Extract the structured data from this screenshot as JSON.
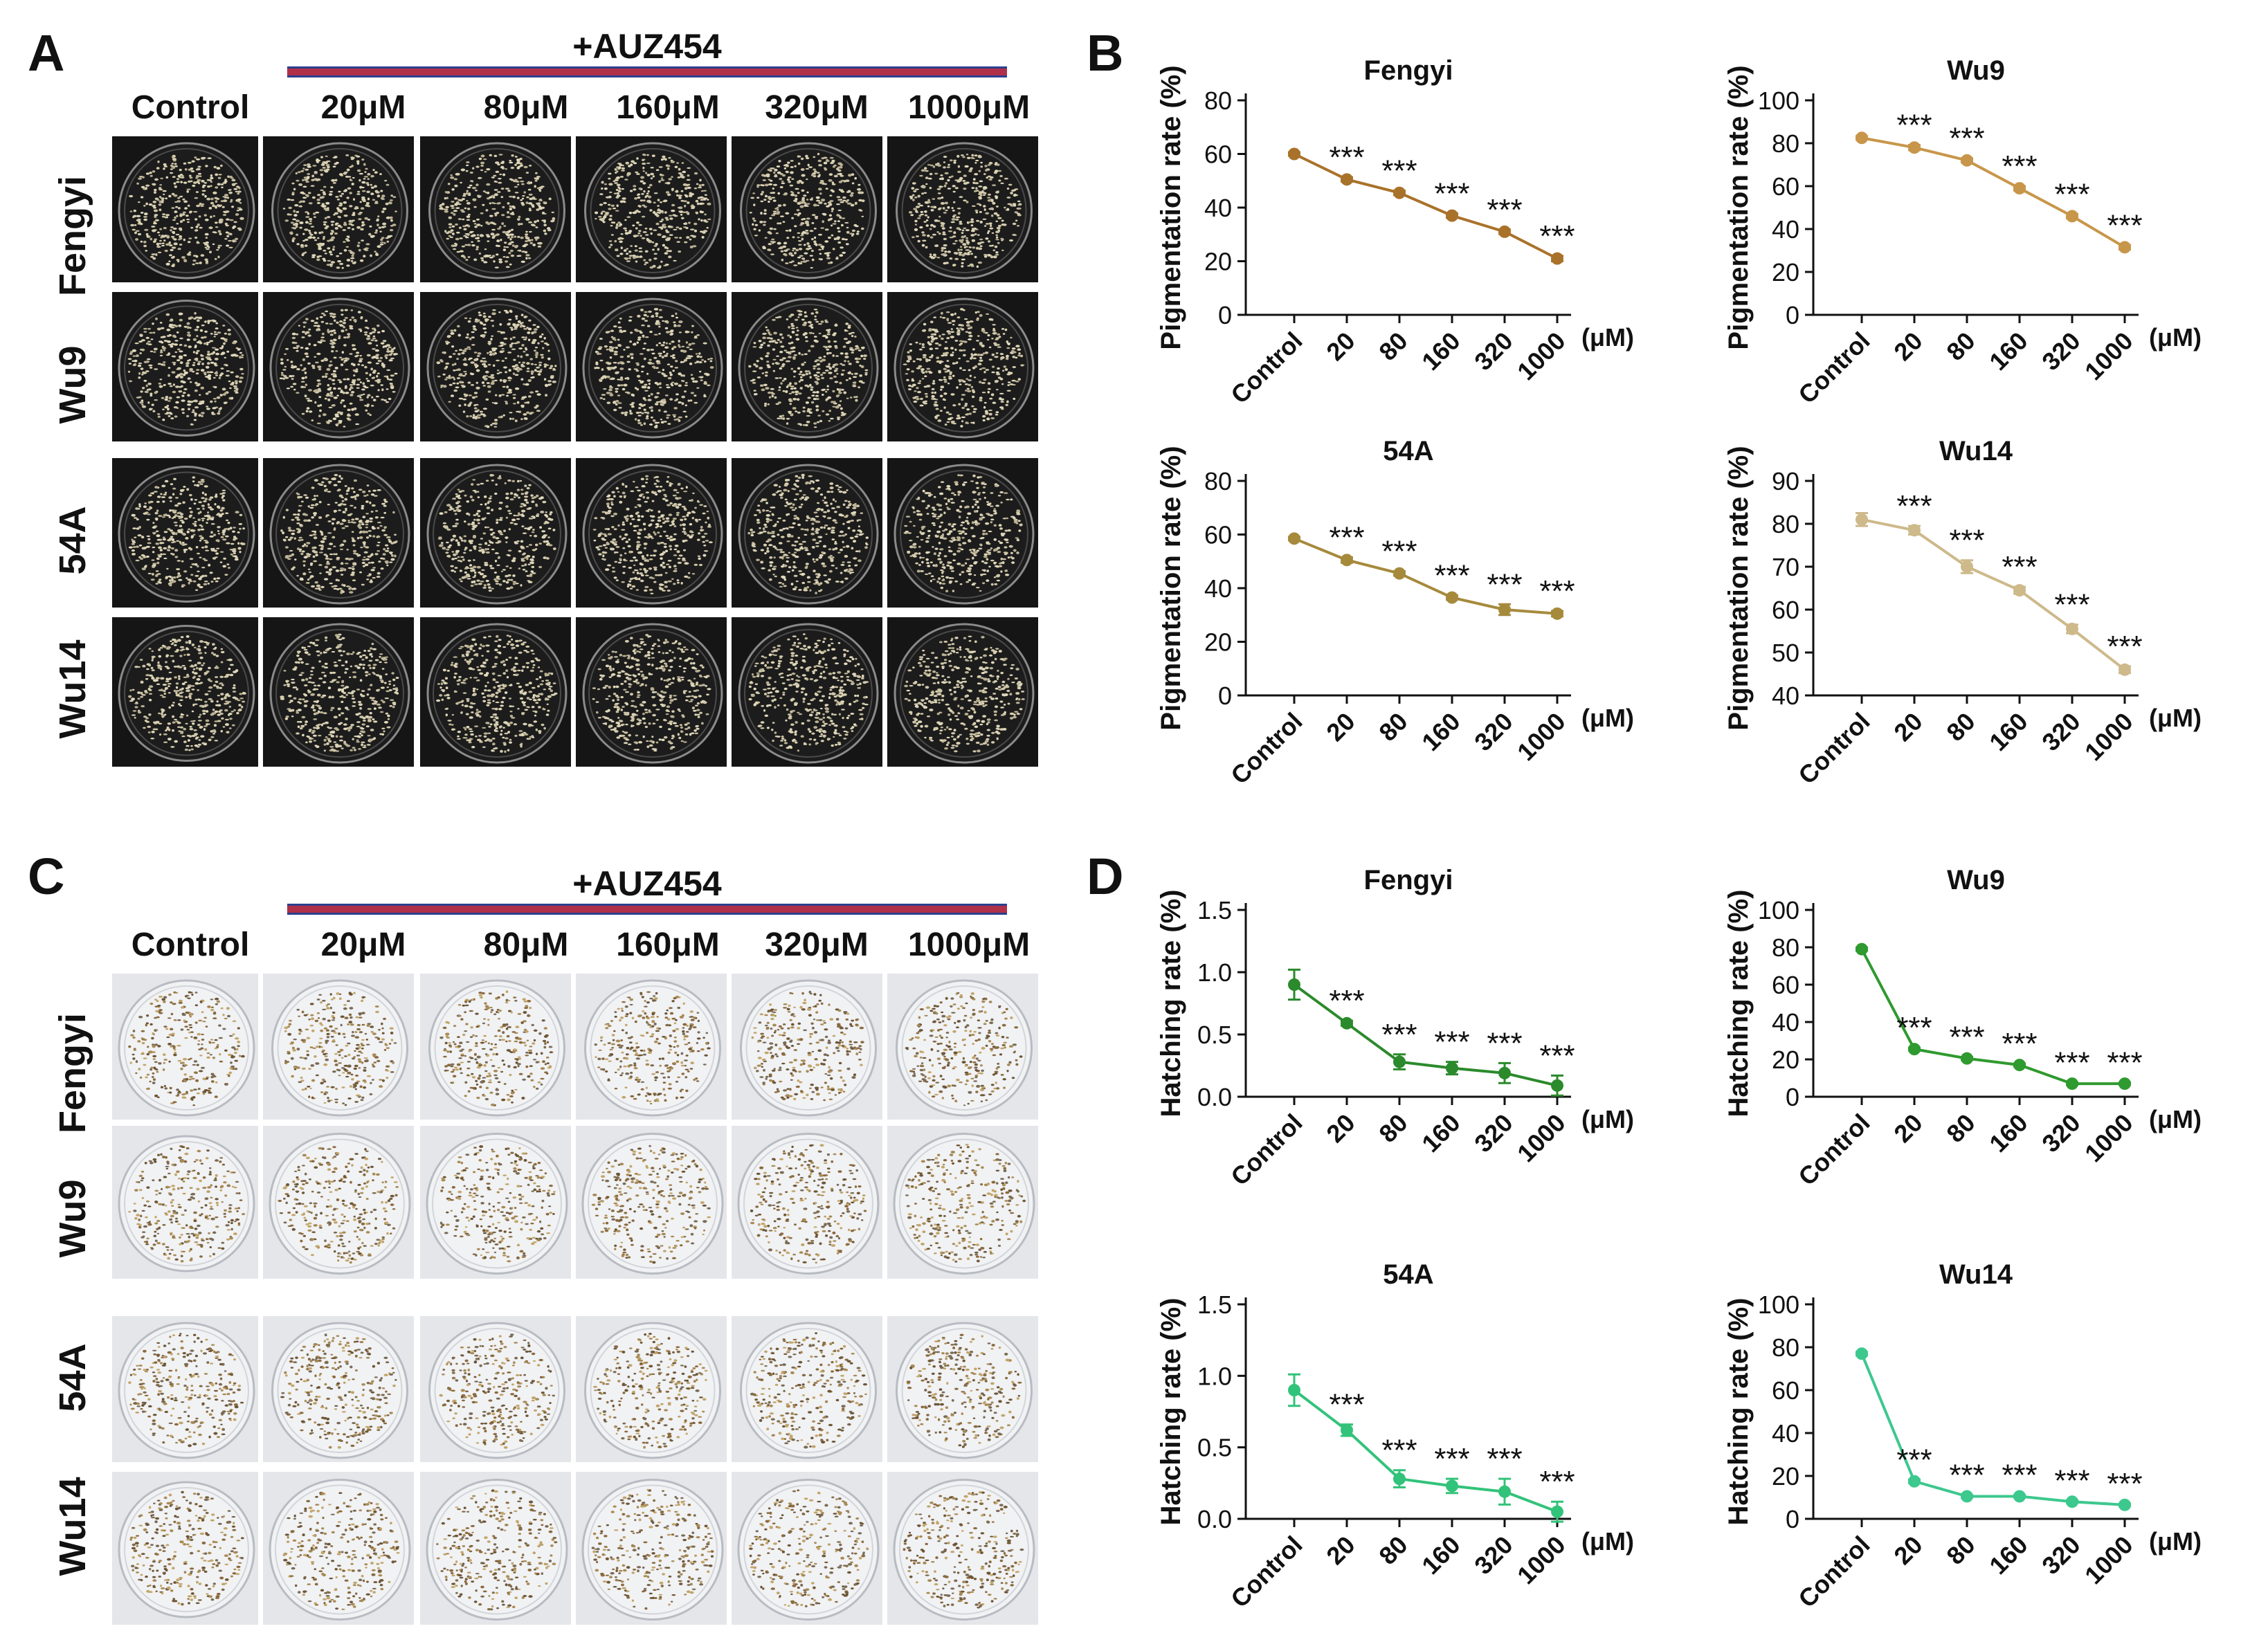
{
  "panels": {
    "A": {
      "letter": "A",
      "treatment_label": "+AUZ454",
      "columns": [
        "Control",
        "20μM",
        "80μM",
        "160μM",
        "320μM",
        "1000μM"
      ],
      "rows": [
        "Fengyi",
        "Wu9",
        "54A",
        "Wu14"
      ]
    },
    "B": {
      "letter": "B"
    },
    "C": {
      "letter": "C",
      "treatment_label": "+AUZ454",
      "columns": [
        "Control",
        "20μM",
        "80μM",
        "160μM",
        "320μM",
        "1000μM"
      ],
      "rows": [
        "Fengyi",
        "Wu9",
        "54A",
        "Wu14"
      ]
    },
    "D": {
      "letter": "D"
    }
  },
  "colors": {
    "fengyi_pig": "#a9722a",
    "wu9_pig": "#c8964a",
    "a54_pig": "#a68a3c",
    "wu14_pig": "#cdb98a",
    "fengyi_hat": "#2b8a2b",
    "wu9_hat": "#2f9a2f",
    "a54_hat": "#32c37a",
    "wu14_hat": "#3dc88e"
  },
  "chart_data": [
    {
      "id": "B1",
      "type": "line",
      "title": "Fengyi",
      "ylabel": "Pigmentation rate (%)",
      "categories": [
        "Control",
        "20",
        "80",
        "160",
        "320",
        "1000"
      ],
      "unit_label": "(μM)",
      "ylim": [
        0,
        80
      ],
      "yticks": [
        "0",
        "20",
        "40",
        "60",
        "80"
      ],
      "values": [
        60,
        50.5,
        45.5,
        37,
        31,
        21
      ],
      "errors": [
        0.6,
        0.8,
        0.8,
        0.8,
        0.8,
        1
      ],
      "significance": [
        "",
        "***",
        "***",
        "***",
        "***",
        "***"
      ],
      "color": "#a9722a"
    },
    {
      "id": "B2",
      "type": "line",
      "title": "Wu9",
      "ylabel": "Pigmentation rate (%)",
      "categories": [
        "Control",
        "20",
        "80",
        "160",
        "320",
        "1000"
      ],
      "unit_label": "(μM)",
      "ylim": [
        0,
        100
      ],
      "yticks": [
        "0",
        "20",
        "40",
        "60",
        "80",
        "100"
      ],
      "values": [
        82.5,
        78,
        72,
        59,
        46,
        31.5
      ],
      "errors": [
        0.8,
        1.2,
        1,
        1,
        1,
        1
      ],
      "significance": [
        "",
        "***",
        "***",
        "***",
        "***",
        "***"
      ],
      "color": "#c8964a"
    },
    {
      "id": "B3",
      "type": "line",
      "title": "54A",
      "ylabel": "Pigmentation rate (%)",
      "categories": [
        "Control",
        "20",
        "80",
        "160",
        "320",
        "1000"
      ],
      "unit_label": "(μM)",
      "ylim": [
        0,
        80
      ],
      "yticks": [
        "0",
        "20",
        "40",
        "60",
        "80"
      ],
      "values": [
        58.5,
        50.5,
        45.5,
        36.5,
        32,
        30.5
      ],
      "errors": [
        0.6,
        1,
        0.8,
        0.8,
        2,
        1
      ],
      "significance": [
        "",
        "***",
        "***",
        "***",
        "***",
        "***"
      ],
      "color": "#a68a3c"
    },
    {
      "id": "B4",
      "type": "line",
      "title": "Wu14",
      "ylabel": "Pigmentation rate (%)",
      "categories": [
        "Control",
        "20",
        "80",
        "160",
        "320",
        "1000"
      ],
      "unit_label": "(μM)",
      "ylim": [
        40,
        90
      ],
      "yticks": [
        "40",
        "50",
        "60",
        "70",
        "80",
        "90"
      ],
      "values": [
        81,
        78.5,
        70,
        64.5,
        55.5,
        46
      ],
      "errors": [
        1.5,
        1,
        1.5,
        0.8,
        1,
        0.8
      ],
      "significance": [
        "",
        "***",
        "***",
        "***",
        "***",
        "***"
      ],
      "color": "#cdb98a"
    },
    {
      "id": "D1",
      "type": "line",
      "title": "Fengyi",
      "ylabel": "Hatching rate (%)",
      "categories": [
        "Control",
        "20",
        "80",
        "160",
        "320",
        "1000"
      ],
      "unit_label": "(μM)",
      "ylim": [
        0,
        1.5
      ],
      "yticks": [
        "0.0",
        "0.5",
        "1.0",
        "1.5"
      ],
      "values": [
        0.9,
        0.59,
        0.28,
        0.23,
        0.19,
        0.09
      ],
      "errors": [
        0.12,
        0.02,
        0.06,
        0.05,
        0.08,
        0.08
      ],
      "significance": [
        "",
        "***",
        "***",
        "***",
        "***",
        "***"
      ],
      "color": "#2b8a2b"
    },
    {
      "id": "D2",
      "type": "line",
      "title": "Wu9",
      "ylabel": "Hatching rate (%)",
      "categories": [
        "Control",
        "20",
        "80",
        "160",
        "320",
        "1000"
      ],
      "unit_label": "(μM)",
      "ylim": [
        0,
        100
      ],
      "yticks": [
        "0",
        "20",
        "40",
        "60",
        "80",
        "100"
      ],
      "values": [
        79,
        25.5,
        20.5,
        17,
        7,
        7
      ],
      "errors": [
        0.8,
        0.8,
        0.8,
        0.8,
        0.6,
        0.6
      ],
      "significance": [
        "",
        "***",
        "***",
        "***",
        "***",
        "***"
      ],
      "color": "#2f9a2f"
    },
    {
      "id": "D3",
      "type": "line",
      "title": "54A",
      "ylabel": "Hatching rate (%)",
      "categories": [
        "Control",
        "20",
        "80",
        "160",
        "320",
        "1000"
      ],
      "unit_label": "(μM)",
      "ylim": [
        0,
        1.5
      ],
      "yticks": [
        "0.0",
        "0.5",
        "1.0",
        "1.5"
      ],
      "values": [
        0.9,
        0.62,
        0.28,
        0.23,
        0.19,
        0.05
      ],
      "errors": [
        0.11,
        0.04,
        0.06,
        0.05,
        0.09,
        0.07
      ],
      "significance": [
        "",
        "***",
        "***",
        "***",
        "***",
        "***"
      ],
      "color": "#32c37a"
    },
    {
      "id": "D4",
      "type": "line",
      "title": "Wu14",
      "ylabel": "Hatching rate (%)",
      "categories": [
        "Control",
        "20",
        "80",
        "160",
        "320",
        "1000"
      ],
      "unit_label": "(μM)",
      "ylim": [
        0,
        100
      ],
      "yticks": [
        "0",
        "20",
        "40",
        "60",
        "80",
        "100"
      ],
      "values": [
        77,
        17.5,
        10.5,
        10.5,
        8,
        6.5
      ],
      "errors": [
        0.8,
        0.8,
        0.6,
        0.6,
        0.6,
        0.6
      ],
      "significance": [
        "",
        "***",
        "***",
        "***",
        "***",
        "***"
      ],
      "color": "#3dc88e"
    }
  ]
}
